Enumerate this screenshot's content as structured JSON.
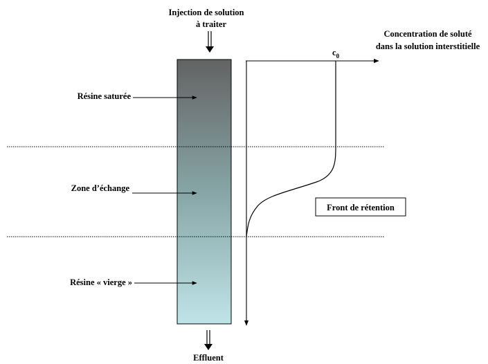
{
  "injection": {
    "line1": "Injection de solution",
    "line2": "à traiter"
  },
  "effluent": "Effluent",
  "column": {
    "gradient_top": "#636363",
    "gradient_mid": "#87a5a6",
    "gradient_bottom": "#bfe4e8"
  },
  "zones": {
    "saturated": "Résine saturée",
    "exchange": "Zone d’échange",
    "virgin": "Résine « vierge »"
  },
  "axis": {
    "title_line1": "Concentration de soluté",
    "title_line2": "dans la solution interstitielle",
    "c0_main": "c",
    "c0_sub": "0"
  },
  "front_label": "Front de rétention"
}
